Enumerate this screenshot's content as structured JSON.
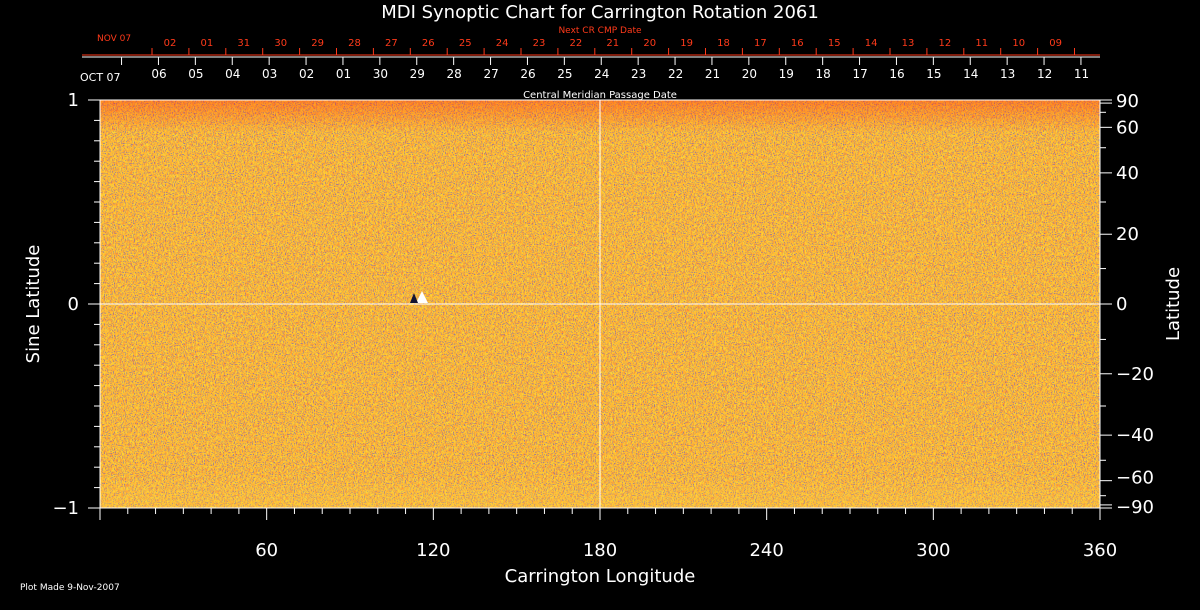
{
  "chart_data": {
    "type": "heatmap",
    "title": "MDI Synoptic Chart for Carrington Rotation 2061",
    "xlabel": "Carrington Longitude",
    "ylabel_left": "Sine Latitude",
    "ylabel_right": "Latitude",
    "xlim": [
      0,
      360
    ],
    "ylim": [
      -1,
      1
    ],
    "x_ticks": [
      60,
      120,
      180,
      240,
      300,
      360
    ],
    "y_ticks_left": [
      {
        "value": 1,
        "label": "1"
      },
      {
        "value": 0,
        "label": "0"
      },
      {
        "value": -1,
        "label": "−1"
      }
    ],
    "y_ticks_right": [
      {
        "deg": 90,
        "label": "90"
      },
      {
        "deg": 60,
        "label": "60"
      },
      {
        "deg": 40,
        "label": "40"
      },
      {
        "deg": 20,
        "label": "20"
      },
      {
        "deg": 0,
        "label": "0"
      },
      {
        "deg": -20,
        "label": "−20"
      },
      {
        "deg": -40,
        "label": "−40"
      },
      {
        "deg": -60,
        "label": "−60"
      },
      {
        "deg": -90,
        "label": "−90"
      }
    ],
    "crosshair": {
      "longitude": 180,
      "sine_latitude": 0
    },
    "central_meridian_axis": {
      "label": "Central Meridian Passage Date",
      "start_label": "OCT 07",
      "dates": [
        "06",
        "05",
        "04",
        "03",
        "02",
        "01",
        "30",
        "29",
        "28",
        "27",
        "26",
        "25",
        "24",
        "23",
        "22",
        "21",
        "20",
        "19",
        "18",
        "17",
        "16",
        "15",
        "14",
        "13",
        "12",
        "11"
      ]
    },
    "next_cr_axis": {
      "label": "Next CR CMP Date",
      "start_label": "NOV 07",
      "dates": [
        "02",
        "01",
        "31",
        "30",
        "29",
        "28",
        "27",
        "26",
        "25",
        "24",
        "23",
        "22",
        "21",
        "20",
        "19",
        "18",
        "17",
        "16",
        "15",
        "14",
        "13",
        "12",
        "11",
        "10",
        "09"
      ]
    },
    "colors": {
      "background": "#000000",
      "field": "#ff5a14",
      "axis": "#ffffff",
      "secondary_axis": "#ff3a1a"
    }
  },
  "footer": {
    "plot_made": "Plot Made  9-Nov-2007"
  }
}
